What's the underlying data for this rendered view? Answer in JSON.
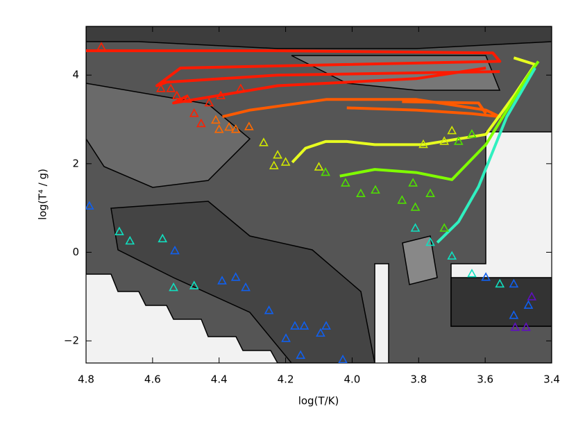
{
  "chart_data": {
    "type": "scatter",
    "xlabel": "log(T/K)",
    "ylabel": "log(T⁴ / g)",
    "xlim": [
      4.8,
      3.4
    ],
    "ylim": [
      -2.5,
      5.1
    ],
    "xticks": [
      4.8,
      4.6,
      4.4,
      4.2,
      {
        "value": 4,
        "label": "4.0"
      },
      3.8,
      3.6,
      3.4
    ],
    "yticks": [
      {
        "value": -2,
        "label": "−2"
      },
      0,
      2,
      4
    ],
    "series": [
      {
        "type": "line",
        "color": "#ff1a00",
        "x": [
          4.8,
          4.224,
          3.577,
          3.556,
          4.016,
          4.516,
          4.587,
          4.558,
          4.224,
          3.556
        ],
        "y": [
          4.55,
          4.55,
          4.5,
          4.31,
          4.24,
          4.16,
          3.76,
          3.84,
          4.0,
          4.08
        ]
      },
      {
        "type": "line",
        "color": "#ff1a00",
        "x": [
          3.598,
          3.807,
          4.224,
          4.537,
          4.495
        ],
        "y": [
          4.16,
          3.92,
          3.76,
          3.37,
          3.53
        ]
      },
      {
        "type": "line",
        "color": "#ff5a00",
        "x": [
          4.39,
          4.307,
          4.078,
          3.807,
          3.598,
          3.556,
          3.64,
          3.807,
          4.016
        ],
        "y": [
          3.06,
          3.21,
          3.45,
          3.45,
          3.21,
          3.06,
          3.13,
          3.21,
          3.26
        ]
      },
      {
        "type": "line",
        "color": "#ff5a00",
        "x": [
          3.85,
          3.62,
          3.598
        ],
        "y": [
          3.4,
          3.37,
          3.13
        ]
      },
      {
        "type": "line",
        "color": "#e8ff20",
        "x": [
          4.18,
          4.14,
          4.08,
          4.016,
          3.932,
          3.786,
          3.598,
          3.514,
          3.45,
          3.514
        ],
        "y": [
          2.03,
          2.35,
          2.5,
          2.5,
          2.43,
          2.43,
          2.66,
          3.53,
          4.24,
          4.39
        ]
      },
      {
        "type": "line",
        "color": "#80ff00",
        "x": [
          4.037,
          3.932,
          3.807,
          3.7,
          3.598,
          3.47,
          3.44
        ],
        "y": [
          1.72,
          1.87,
          1.8,
          1.64,
          2.43,
          4.0,
          4.31
        ]
      },
      {
        "type": "line",
        "color": "#30f0c0",
        "x": [
          3.744,
          3.68,
          3.62,
          3.535,
          3.45
        ],
        "y": [
          0.22,
          0.69,
          1.48,
          3.06,
          4.16
        ]
      },
      {
        "type": "scatter",
        "color": "#ff2000",
        "x": [
          4.754,
          4.545,
          4.575,
          4.527,
          4.495,
          4.43,
          4.395,
          4.335,
          4.475,
          4.454
        ],
        "y": [
          4.63,
          3.69,
          3.69,
          3.53,
          3.45,
          3.37,
          3.53,
          3.69,
          3.13,
          2.9
        ]
      },
      {
        "type": "scatter",
        "color": "#ff6a00",
        "x": [
          4.4,
          4.37,
          4.31,
          4.35,
          4.41
        ],
        "y": [
          2.77,
          2.82,
          2.83,
          2.77,
          2.98
        ]
      },
      {
        "type": "scatter",
        "color": "#d0e800",
        "x": [
          4.266,
          4.224,
          4.2,
          4.235,
          4.1,
          3.786,
          3.723,
          3.7
        ],
        "y": [
          2.47,
          2.19,
          2.03,
          1.95,
          1.92,
          2.43,
          2.5,
          2.74
        ]
      },
      {
        "type": "scatter",
        "color": "#50e000",
        "x": [
          4.08,
          4.02,
          3.93,
          3.85,
          3.81,
          3.68,
          3.64,
          3.765,
          3.817,
          3.974,
          3.723
        ],
        "y": [
          1.8,
          1.56,
          1.4,
          1.17,
          1.01,
          2.5,
          2.66,
          1.32,
          1.56,
          1.32,
          0.54
        ]
      },
      {
        "type": "scatter",
        "color": "#10e0c0",
        "x": [
          3.81,
          3.765,
          3.7,
          3.64,
          3.556,
          4.475,
          4.537,
          4.57,
          4.7,
          4.668
        ],
        "y": [
          0.54,
          0.22,
          -0.09,
          -0.49,
          -0.72,
          -0.76,
          -0.8,
          0.3,
          0.46,
          0.25
        ]
      },
      {
        "type": "scatter",
        "color": "#1060f0",
        "x": [
          4.79,
          4.533,
          4.391,
          4.35,
          4.32,
          4.25,
          4.172,
          4.144,
          4.199,
          4.095,
          4.078,
          4.155,
          4.028,
          3.598,
          3.514,
          3.47,
          3.514
        ],
        "y": [
          1.04,
          0.03,
          -0.65,
          -0.57,
          -0.8,
          -1.32,
          -1.67,
          -1.67,
          -1.95,
          -1.83,
          -1.67,
          -2.33,
          -2.43,
          -0.57,
          -0.72,
          -1.2,
          -1.43
        ]
      },
      {
        "type": "scatter",
        "color": "#6010c0",
        "x": [
          3.51,
          3.477,
          3.46
        ],
        "y": [
          -1.7,
          -1.7,
          -1.01
        ]
      }
    ]
  }
}
